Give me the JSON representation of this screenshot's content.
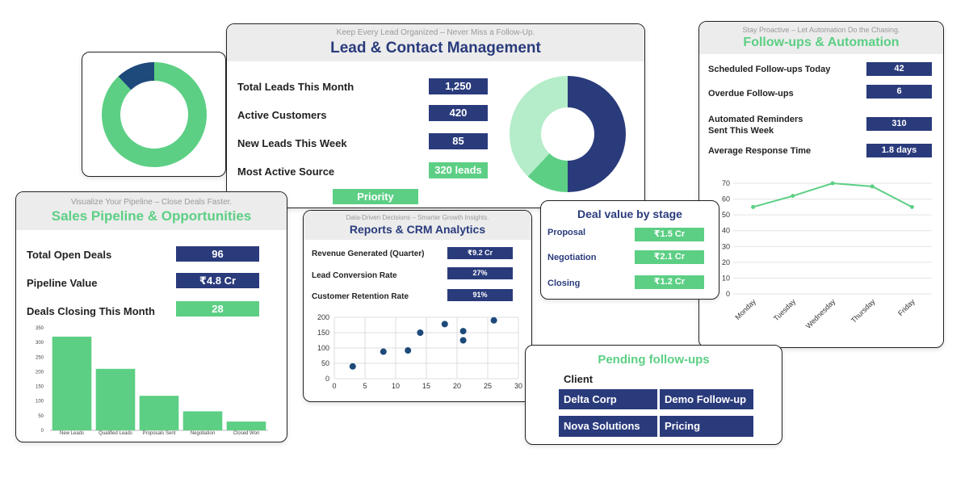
{
  "colors": {
    "navy": "#2a3b7c",
    "green": "#5ccf84",
    "light_green": "#b5ecc9",
    "dark_navy": "#1d4a7a",
    "line_green": "#5ccf84"
  },
  "lead": {
    "tagline": "Keep Every Lead Organized – Never Miss a Follow-Up.",
    "title": "Lead & Contact Management",
    "metrics": [
      {
        "label": "Total Leads This Month",
        "value": "1,250"
      },
      {
        "label": "Active Customers",
        "value": "420"
      },
      {
        "label": "New Leads This Week",
        "value": "85"
      },
      {
        "label": "Most Active Source",
        "value": "320 leads"
      }
    ],
    "priority_label": "Priority"
  },
  "followups": {
    "tagline": "Stay Proactive – Let Automation Do the Chasing.",
    "title": "Follow-ups & Automation",
    "metrics": [
      {
        "label": "Scheduled Follow-ups Today",
        "value": "42"
      },
      {
        "label": "Overdue Follow-ups",
        "value": "6"
      },
      {
        "label": "Automated Reminders Sent This Week",
        "value": "310"
      },
      {
        "label": "Average Response Time",
        "value": "1.8 days"
      }
    ]
  },
  "pipeline": {
    "tagline": "Visualize Your Pipeline – Close Deals Faster.",
    "title": "Sales Pipeline & Opportunities",
    "metrics": [
      {
        "label": "Total Open Deals",
        "value": "96"
      },
      {
        "label": "Pipeline Value",
        "value": "₹4.8 Cr"
      },
      {
        "label": "Deals Closing This Month",
        "value": "28"
      }
    ]
  },
  "reports": {
    "tagline": "Data-Driven Decisions – Smarter Growth Insights.",
    "title": "Reports & CRM Analytics",
    "metrics": [
      {
        "label": "Revenue Generated (Quarter)",
        "value": "₹9.2 Cr"
      },
      {
        "label": "Lead Conversion Rate",
        "value": "27%"
      },
      {
        "label": "Customer Retention Rate",
        "value": "91%"
      }
    ]
  },
  "deal_stage": {
    "title": "Deal value by stage",
    "rows": [
      {
        "label": "Proposal",
        "value": "₹1.5 Cr"
      },
      {
        "label": "Negotiation",
        "value": "₹2.1 Cr"
      },
      {
        "label": "Closing",
        "value": "₹1.2 Cr"
      }
    ]
  },
  "pending": {
    "title": "Pending follow-ups",
    "column_header": "Client",
    "rows": [
      {
        "client": "Delta Corp",
        "task": "Demo Follow-up"
      },
      {
        "client": "Nova Solutions",
        "task": "Pricing Discussion"
      }
    ]
  },
  "chart_data": [
    {
      "type": "pie",
      "variant": "donut",
      "values": [
        88,
        12
      ],
      "colors": [
        "#5ccf84",
        "#1d4a7a"
      ]
    },
    {
      "type": "pie",
      "variant": "donut",
      "values": [
        50,
        12,
        38
      ],
      "colors": [
        "#2a3b7c",
        "#5ccf84",
        "#b5ecc9"
      ]
    },
    {
      "type": "bar",
      "categories": [
        "New Leads",
        "Qualified Leads",
        "Proposals Sent",
        "Negotiation",
        "Closed Won"
      ],
      "values": [
        320,
        210,
        118,
        65,
        30
      ],
      "ylim": [
        0,
        350
      ],
      "yticks": [
        0,
        50,
        100,
        150,
        200,
        250,
        300,
        350
      ],
      "grid": false
    },
    {
      "type": "scatter",
      "points": [
        [
          3,
          40
        ],
        [
          8,
          88
        ],
        [
          12,
          92
        ],
        [
          14,
          150
        ],
        [
          18,
          178
        ],
        [
          21,
          155
        ],
        [
          21,
          125
        ],
        [
          26,
          190
        ]
      ],
      "xlim": [
        0,
        30
      ],
      "ylim": [
        0,
        200
      ],
      "xticks": [
        0,
        5,
        10,
        15,
        20,
        25,
        30
      ],
      "yticks": [
        0,
        50,
        100,
        150,
        200
      ],
      "grid": true
    },
    {
      "type": "line",
      "categories": [
        "Monday",
        "Tuesday",
        "Wednesday",
        "Thursday",
        "Friday"
      ],
      "values": [
        55,
        62,
        70,
        68,
        55
      ],
      "ylim": [
        0,
        70
      ],
      "yticks": [
        0,
        10,
        20,
        30,
        40,
        50,
        60,
        70
      ],
      "grid": true
    }
  ]
}
